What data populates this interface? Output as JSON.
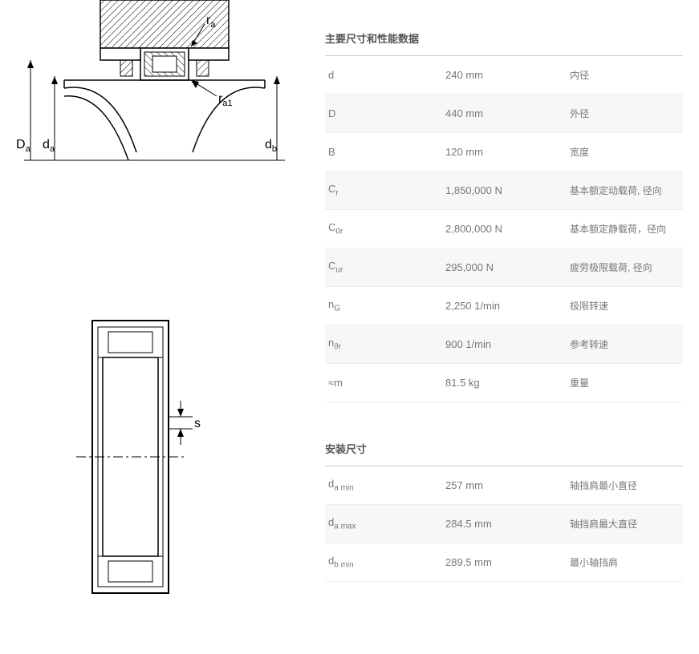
{
  "sections": {
    "main": {
      "title": "主要尺寸和性能数据"
    },
    "mounting": {
      "title": "安装尺寸"
    }
  },
  "main_specs": [
    {
      "symbol_html": "d",
      "value": "240 mm",
      "desc": "内径"
    },
    {
      "symbol_html": "D",
      "value": "440 mm",
      "desc": "外径"
    },
    {
      "symbol_html": "B",
      "value": "120 mm",
      "desc": "宽度"
    },
    {
      "symbol_html": "C<sub>r</sub>",
      "value": "1,850,000 N",
      "desc": "基本额定动载荷, 径向"
    },
    {
      "symbol_html": "C<sub>0r</sub>",
      "value": "2,800,000 N",
      "desc": "基本额定静载荷，径向"
    },
    {
      "symbol_html": "C<sub>ur</sub>",
      "value": "295,000 N",
      "desc": "疲劳极限载荷, 径向"
    },
    {
      "symbol_html": "n<sub>G</sub>",
      "value": "2,250 1/min",
      "desc": "极限转速"
    },
    {
      "symbol_html": "n<sub>ϑr</sub>",
      "value": "900 1/min",
      "desc": "参考转速"
    },
    {
      "symbol_html": "≈m",
      "value": "81.5 kg",
      "desc": "重量"
    }
  ],
  "mounting_specs": [
    {
      "symbol_html": "d<sub>a min</sub>",
      "value": "257 mm",
      "desc": "轴挡肩最小直径"
    },
    {
      "symbol_html": "d<sub>a max</sub>",
      "value": "284.5 mm",
      "desc": "轴挡肩最大直径"
    },
    {
      "symbol_html": "d<sub>b min</sub>",
      "value": "289.5 mm",
      "desc": "最小轴挡肩"
    }
  ],
  "diagrams": {
    "top_labels": {
      "Da": "D",
      "Da_sub": "a",
      "da": "d",
      "da_sub": "a",
      "db": "d",
      "db_sub": "b",
      "ra": "r",
      "ra_sub": "a",
      "ra1": "r",
      "ra1_sub": "a1"
    },
    "bottom_label": "s",
    "colors": {
      "stroke": "#000000",
      "hatch": "#000000",
      "bg": "#ffffff"
    }
  }
}
